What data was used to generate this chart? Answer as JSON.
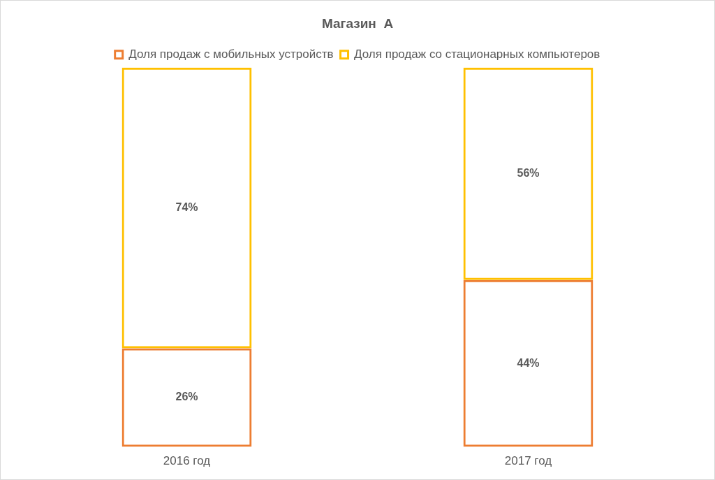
{
  "chart_data": {
    "type": "bar",
    "title": "Магазин  А",
    "categories": [
      "2016 год",
      "2017 год"
    ],
    "stacked": true,
    "legend": "top",
    "series": [
      {
        "name": "Доля продаж с мобильных устройств",
        "color": "#ed7d31",
        "values": [
          26,
          44
        ],
        "value_labels": [
          "26%",
          "44%"
        ]
      },
      {
        "name": "Доля продаж со стационарных компьютеров",
        "color": "#ffc000",
        "values": [
          74,
          56
        ],
        "value_labels": [
          "74%",
          "56%"
        ]
      }
    ]
  }
}
